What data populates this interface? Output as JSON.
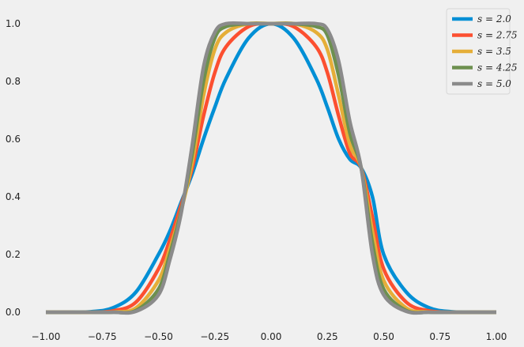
{
  "chart_data": {
    "type": "line",
    "title": "",
    "xlabel": "",
    "ylabel": "",
    "xlim": [
      -1.0,
      1.0
    ],
    "ylim": [
      -0.03,
      1.03
    ],
    "grid": false,
    "legend_position": "top-right",
    "x_ticks": [
      -1.0,
      -0.75,
      -0.5,
      -0.25,
      0.0,
      0.25,
      0.5,
      0.75,
      1.0
    ],
    "x_tick_labels": [
      "−1.00",
      "−0.75",
      "−0.50",
      "−0.25",
      "0.00",
      "0.25",
      "0.50",
      "0.75",
      "1.00"
    ],
    "y_ticks": [
      0.0,
      0.2,
      0.4,
      0.6,
      0.8,
      1.0
    ],
    "y_tick_labels": [
      "0.0",
      "0.2",
      "0.4",
      "0.6",
      "0.8",
      "1.0"
    ],
    "x": [
      -1.0,
      -0.9,
      -0.8,
      -0.7,
      -0.6,
      -0.5,
      -0.45,
      -0.4,
      -0.35,
      -0.3,
      -0.25,
      -0.2,
      -0.1,
      0.0,
      0.1,
      0.2,
      0.25,
      0.3,
      0.35,
      0.4,
      0.45,
      0.5,
      0.6,
      0.7,
      0.8,
      0.9,
      1.0
    ],
    "series": [
      {
        "name": "s = 2.0",
        "legend_label": "s = 2.0",
        "color": "#008fd5",
        "values": [
          0.0,
          0.0,
          0.002,
          0.016,
          0.07,
          0.2,
          0.28,
          0.38,
          0.48,
          0.6,
          0.71,
          0.81,
          0.95,
          1.0,
          0.95,
          0.81,
          0.71,
          0.6,
          0.53,
          0.5,
          0.4,
          0.2,
          0.07,
          0.016,
          0.002,
          0.0,
          0.0
        ]
      },
      {
        "name": "s = 2.75",
        "legend_label": "s = 2.75",
        "color": "#fc4f30",
        "values": [
          0.0,
          0.0,
          0.0,
          0.005,
          0.035,
          0.15,
          0.25,
          0.37,
          0.5,
          0.68,
          0.83,
          0.92,
          0.99,
          1.0,
          0.99,
          0.92,
          0.83,
          0.68,
          0.55,
          0.5,
          0.33,
          0.15,
          0.035,
          0.005,
          0.0,
          0.0,
          0.0
        ]
      },
      {
        "name": "s = 3.5",
        "legend_label": "s = 3.5",
        "color": "#e5ae38",
        "values": [
          0.0,
          0.0,
          0.0,
          0.001,
          0.015,
          0.11,
          0.22,
          0.35,
          0.52,
          0.75,
          0.91,
          0.97,
          1.0,
          1.0,
          1.0,
          0.97,
          0.91,
          0.75,
          0.58,
          0.5,
          0.28,
          0.11,
          0.015,
          0.001,
          0.0,
          0.0,
          0.0
        ]
      },
      {
        "name": "s = 4.25",
        "legend_label": "s = 4.25",
        "color": "#6d904f",
        "values": [
          0.0,
          0.0,
          0.0,
          0.0,
          0.006,
          0.08,
          0.2,
          0.35,
          0.55,
          0.8,
          0.95,
          0.99,
          1.0,
          1.0,
          1.0,
          0.99,
          0.96,
          0.82,
          0.62,
          0.5,
          0.24,
          0.08,
          0.006,
          0.0,
          0.0,
          0.0,
          0.0
        ]
      },
      {
        "name": "s = 5.0",
        "legend_label": "s = 5.0",
        "color": "#8b8b8b",
        "values": [
          0.0,
          0.0,
          0.0,
          0.0,
          0.003,
          0.06,
          0.18,
          0.34,
          0.58,
          0.85,
          0.97,
          1.0,
          1.0,
          1.0,
          1.0,
          1.0,
          0.98,
          0.87,
          0.66,
          0.5,
          0.2,
          0.06,
          0.003,
          0.0,
          0.0,
          0.0,
          0.0
        ]
      }
    ]
  }
}
